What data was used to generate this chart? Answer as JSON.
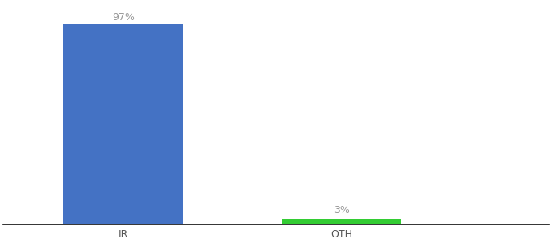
{
  "categories": [
    "IR",
    "OTH"
  ],
  "values": [
    97,
    3
  ],
  "bar_colors": [
    "#4472c4",
    "#33cc33"
  ],
  "value_labels": [
    "97%",
    "3%"
  ],
  "background_color": "#ffffff",
  "ylim": [
    0,
    107
  ],
  "label_color": "#999999",
  "label_fontsize": 9,
  "tick_fontsize": 9,
  "tick_color": "#555555",
  "axis_line_color": "#111111",
  "x_positions": [
    0.22,
    0.62
  ],
  "bar_width": 0.22,
  "xlim": [
    0.0,
    1.0
  ]
}
